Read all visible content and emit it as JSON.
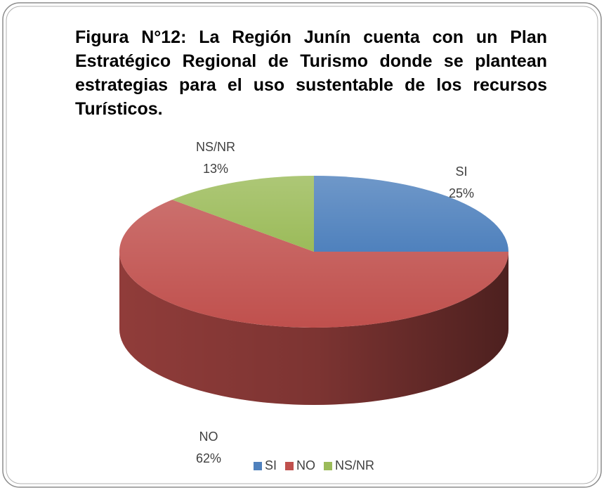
{
  "chart_data": {
    "type": "pie",
    "title": "Figura N°12: La Región Junín cuenta con un Plan Estratégico Regional de Turismo donde se plantean estrategias para el uso sustentable de los recursos Turísticos.",
    "categories": [
      "SI",
      "NO",
      "NS/NR"
    ],
    "values": [
      25,
      62,
      13
    ],
    "value_labels": [
      "25%",
      "62%",
      "13%"
    ],
    "colors": [
      "#4f81bd",
      "#c0504d",
      "#9bbb59"
    ],
    "legend": "bottom"
  }
}
